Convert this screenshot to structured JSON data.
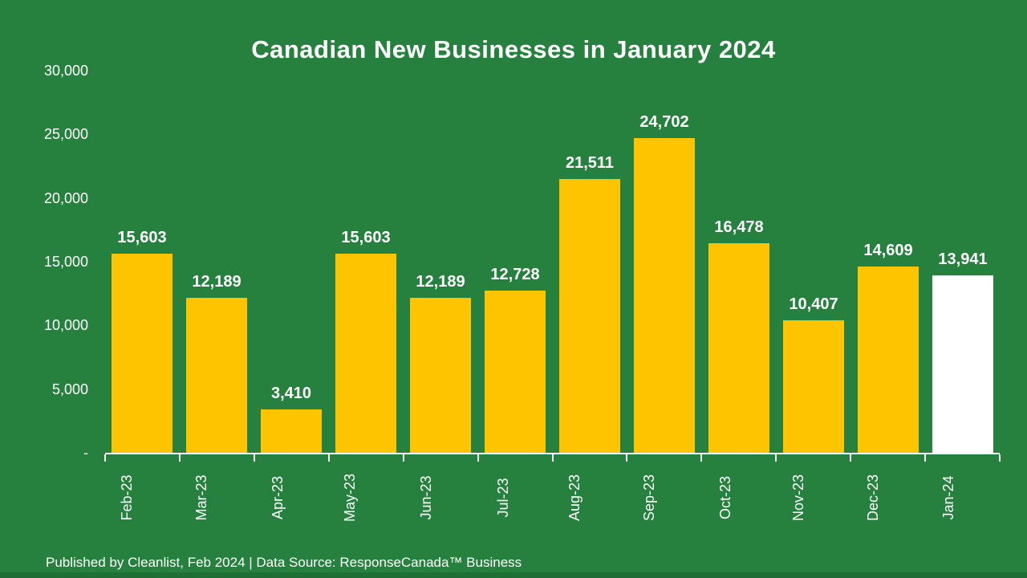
{
  "slide": {
    "footer": "Published by Cleanlist, Feb 2024 | Data Source: ResponseCanada™ Business",
    "background_color": "#26803E",
    "bottom_strip_color": "#1F6F36",
    "text_color": "#FFFFFF"
  },
  "chart_data": {
    "type": "bar",
    "title": "Canadian New Businesses in January 2024",
    "categories": [
      "Feb-23",
      "Mar-23",
      "Apr-23",
      "May-23",
      "Jun-23",
      "Jul-23",
      "Aug-23",
      "Sep-23",
      "Oct-23",
      "Nov-23",
      "Dec-23",
      "Jan-24"
    ],
    "values": [
      15603,
      12189,
      3410,
      15603,
      12189,
      12728,
      21511,
      24702,
      16478,
      10407,
      14609,
      13941
    ],
    "value_labels": [
      "15,603",
      "12,189",
      "3,410",
      "15,603",
      "12,189",
      "12,728",
      "21,511",
      "24,702",
      "16,478",
      "10,407",
      "14,609",
      "13,941"
    ],
    "bar_colors": [
      "#FFC400",
      "#FFC400",
      "#FFC400",
      "#FFC400",
      "#FFC400",
      "#FFC400",
      "#FFC400",
      "#FFC400",
      "#FFC400",
      "#FFC400",
      "#FFC400",
      "#FFFFFF"
    ],
    "ylim": [
      0,
      30000
    ],
    "ytick_labels": [
      "30,000",
      "25,000",
      "20,000",
      "15,000",
      "10,000",
      "5,000",
      "-"
    ],
    "axis_color": "#FFFFFF",
    "grid": false,
    "legend": null,
    "xlabel": "",
    "ylabel": ""
  }
}
